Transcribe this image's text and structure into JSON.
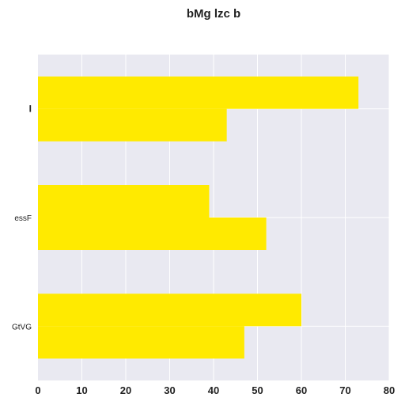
{
  "chart_data": {
    "type": "bar",
    "orientation": "horizontal",
    "title": "bMg lzc b",
    "xlabel": "",
    "ylabel": "",
    "categories": [
      "I",
      "essF",
      "GtVG"
    ],
    "series": [
      {
        "values": [
          73,
          39,
          60
        ]
      },
      {
        "values": [
          43,
          52,
          47
        ]
      }
    ],
    "xlim": [
      0,
      80
    ],
    "xticks": [
      "0",
      "10",
      "20",
      "30",
      "40",
      "50",
      "60",
      "70",
      "80"
    ],
    "grid": true,
    "legend": "none",
    "colors": {
      "bar": "#ffea00",
      "plot_bg": "#e9e9f1",
      "grid": "#ffffff"
    }
  }
}
